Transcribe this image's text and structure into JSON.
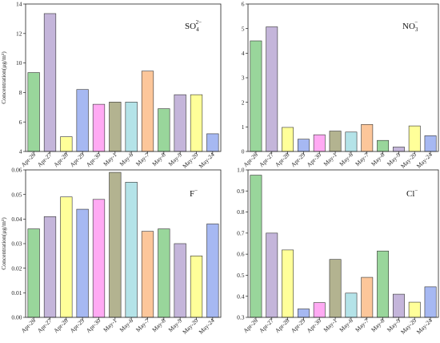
{
  "figure": {
    "ylabel": "Concentration(μg/m³)"
  },
  "chart_data": [
    {
      "type": "bar",
      "label_main": "SO",
      "label_sub": "4",
      "label_sup": "2−",
      "categories": [
        "Apr-26",
        "Apr-27",
        "Apr-28",
        "Apr-29",
        "Apr-30",
        "May-1",
        "May-6",
        "May-7",
        "May-8",
        "May-9",
        "May-20",
        "May-24"
      ],
      "values": [
        9.35,
        13.35,
        5.0,
        8.2,
        7.2,
        7.35,
        7.35,
        9.45,
        6.9,
        7.85,
        7.85,
        5.2
      ],
      "colors": [
        "#99d69b",
        "#c4b5da",
        "#ffff99",
        "#a6b8f2",
        "#ffaaf3",
        "#b3b390",
        "#b4e3e8",
        "#fcc69a",
        "#99d69b",
        "#c4b5da",
        "#ffff99",
        "#a6b8f2"
      ],
      "ylim": [
        4,
        14
      ],
      "yticks": [
        4,
        6,
        8,
        10,
        12,
        14
      ],
      "ylabel": "Concentration(μg/m³)"
    },
    {
      "type": "bar",
      "label_main": "NO",
      "label_sub": "3",
      "label_sup": "−",
      "categories": [
        "Apr-26",
        "Apr-27",
        "Apr-28",
        "Apr-29",
        "Apr-30",
        "May-1",
        "May-6",
        "May-7",
        "May-8",
        "May-9",
        "May-20",
        "May-24"
      ],
      "values": [
        4.5,
        5.07,
        0.98,
        0.5,
        0.68,
        0.83,
        0.79,
        1.1,
        0.45,
        0.18,
        1.04,
        0.64
      ],
      "colors": [
        "#99d69b",
        "#c4b5da",
        "#ffff99",
        "#a6b8f2",
        "#ffaaf3",
        "#b3b390",
        "#b4e3e8",
        "#fcc69a",
        "#99d69b",
        "#c4b5da",
        "#ffff99",
        "#a6b8f2"
      ],
      "ylim": [
        0,
        6
      ],
      "yticks": [
        0,
        1,
        2,
        3,
        4,
        5,
        6
      ],
      "ylabel": ""
    },
    {
      "type": "bar",
      "label_main": "F",
      "label_sub": "",
      "label_sup": "−",
      "categories": [
        "Apr-26",
        "Apr-27",
        "Apr-28",
        "Apr-29",
        "Apr-30",
        "May-1",
        "May-6",
        "May-7",
        "May-8",
        "May-9",
        "May-20",
        "May-24"
      ],
      "values": [
        0.036,
        0.041,
        0.049,
        0.044,
        0.048,
        0.059,
        0.055,
        0.035,
        0.036,
        0.03,
        0.025,
        0.038
      ],
      "colors": [
        "#99d69b",
        "#c4b5da",
        "#ffff99",
        "#a6b8f2",
        "#ffaaf3",
        "#b3b390",
        "#b4e3e8",
        "#fcc69a",
        "#99d69b",
        "#c4b5da",
        "#ffff99",
        "#a6b8f2"
      ],
      "ylim": [
        0,
        0.06
      ],
      "yticks": [
        "0.00",
        "0.01",
        "0.02",
        "0.03",
        "0.04",
        "0.05",
        "0.06"
      ],
      "ylabel": "Concentration(μg/m³)"
    },
    {
      "type": "bar",
      "label_main": "Cl",
      "label_sub": "",
      "label_sup": "−",
      "categories": [
        "Apr-26",
        "Apr-27",
        "Apr-28",
        "Apr-29",
        "Apr-30",
        "May-1",
        "May-6",
        "May-7",
        "May-8",
        "May-9",
        "May-20",
        "May-24"
      ],
      "values": [
        0.975,
        0.7,
        0.62,
        0.34,
        0.37,
        0.575,
        0.415,
        0.49,
        0.615,
        0.41,
        0.372,
        0.445
      ],
      "colors": [
        "#99d69b",
        "#c4b5da",
        "#ffff99",
        "#a6b8f2",
        "#ffaaf3",
        "#b3b390",
        "#b4e3e8",
        "#fcc69a",
        "#99d69b",
        "#c4b5da",
        "#ffff99",
        "#a6b8f2"
      ],
      "ylim": [
        0.3,
        1.0
      ],
      "yticks": [
        "0.3",
        "0.4",
        "0.5",
        "0.6",
        "0.7",
        "0.8",
        "0.9",
        "1.0"
      ],
      "ylabel": ""
    }
  ]
}
